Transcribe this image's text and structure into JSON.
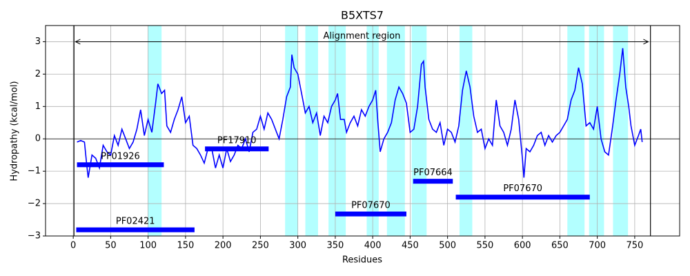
{
  "chart_data": {
    "type": "line",
    "title": "B5XTS7",
    "xlabel": "Residues",
    "ylabel": "Hydropathy (kcal/mol)",
    "xlim": [
      -37,
      810
    ],
    "ylim": [
      -3,
      3.5
    ],
    "xticks": [
      0,
      50,
      100,
      150,
      200,
      250,
      300,
      350,
      400,
      450,
      500,
      550,
      600,
      650,
      700,
      750
    ],
    "yticks": [
      {
        "value": -3,
        "label": "−3"
      },
      {
        "value": -2,
        "label": "−2"
      },
      {
        "value": -1,
        "label": "−1"
      },
      0,
      1,
      2,
      3
    ],
    "grid": true,
    "reference_line": 0,
    "bounds": [
      1,
      771
    ],
    "alignment_region": {
      "label": "Alignment region",
      "start": 3,
      "end": 768,
      "y": 3
    },
    "region_color": "#b3ffff",
    "regions": [
      [
        99.5,
        118
      ],
      [
        283,
        300
      ],
      [
        310,
        327
      ],
      [
        341,
        364
      ],
      [
        392,
        408
      ],
      [
        419,
        443
      ],
      [
        452,
        472
      ],
      [
        516,
        533
      ],
      [
        660,
        683
      ],
      [
        689,
        709
      ],
      [
        721,
        741
      ]
    ],
    "domain_color": "#0000ff",
    "domains": [
      {
        "name": "PF01926",
        "start": 5,
        "end": 121,
        "y": -0.8
      },
      {
        "name": "PF17910",
        "start": 176,
        "end": 261,
        "y": -0.31
      },
      {
        "name": "PF02421",
        "start": 4,
        "end": 162,
        "y": -2.81
      },
      {
        "name": "PF07670",
        "start": 350,
        "end": 445,
        "y": -2.32
      },
      {
        "name": "PF07664",
        "start": 454,
        "end": 507,
        "y": -1.31
      },
      {
        "name": "PF07670",
        "start": 511,
        "end": 690,
        "y": -1.8
      }
    ],
    "series": [
      {
        "color": "#0000ff",
        "x": [
          5,
          10,
          15,
          18,
          20,
          25,
          30,
          35,
          40,
          45,
          50,
          55,
          60,
          65,
          70,
          75,
          80,
          85,
          90,
          95,
          100,
          105,
          110,
          113,
          118,
          122,
          125,
          130,
          135,
          140,
          145,
          150,
          155,
          160,
          165,
          170,
          175,
          180,
          185,
          190,
          195,
          200,
          205,
          210,
          215,
          220,
          225,
          230,
          235,
          240,
          245,
          250,
          255,
          260,
          265,
          270,
          275,
          280,
          285,
          290,
          292,
          295,
          300,
          305,
          310,
          315,
          320,
          325,
          330,
          335,
          340,
          345,
          350,
          353,
          357,
          362,
          365,
          370,
          375,
          380,
          385,
          390,
          395,
          400,
          404,
          407,
          410,
          415,
          420,
          425,
          430,
          435,
          440,
          445,
          450,
          455,
          460,
          465,
          468,
          470,
          475,
          480,
          485,
          490,
          495,
          500,
          505,
          510,
          515,
          520,
          525,
          530,
          535,
          540,
          545,
          550,
          555,
          560,
          565,
          570,
          575,
          580,
          585,
          590,
          595,
          600,
          602,
          605,
          610,
          615,
          620,
          625,
          630,
          635,
          640,
          645,
          650,
          655,
          660,
          665,
          670,
          675,
          680,
          685,
          690,
          695,
          700,
          705,
          710,
          715,
          720,
          725,
          730,
          734,
          738,
          742,
          745,
          750,
          755,
          758,
          760
        ],
        "values": [
          -0.1,
          -0.05,
          -0.1,
          -0.8,
          -1.2,
          -0.5,
          -0.6,
          -0.9,
          -0.2,
          -0.4,
          -0.5,
          0.1,
          -0.2,
          0.3,
          0.0,
          -0.3,
          -0.1,
          0.3,
          0.9,
          0.1,
          0.6,
          0.2,
          1.1,
          1.7,
          1.4,
          1.5,
          0.4,
          0.2,
          0.6,
          0.9,
          1.3,
          0.5,
          0.7,
          -0.2,
          -0.3,
          -0.5,
          -0.75,
          -0.3,
          -0.3,
          -0.9,
          -0.5,
          -0.9,
          -0.3,
          -0.7,
          -0.5,
          -0.2,
          -0.3,
          0.0,
          -0.4,
          0.2,
          0.3,
          0.7,
          0.3,
          0.8,
          0.6,
          0.3,
          0.0,
          0.6,
          1.3,
          1.6,
          2.6,
          2.2,
          2.0,
          1.4,
          0.8,
          1.0,
          0.5,
          0.8,
          0.1,
          0.7,
          0.5,
          1.0,
          1.2,
          1.4,
          0.6,
          0.6,
          0.2,
          0.5,
          0.7,
          0.4,
          0.9,
          0.7,
          1.0,
          1.2,
          1.5,
          0.5,
          -0.4,
          0.0,
          0.2,
          0.5,
          1.2,
          1.6,
          1.4,
          1.1,
          0.2,
          0.3,
          1.0,
          2.3,
          2.4,
          1.6,
          0.6,
          0.3,
          0.2,
          0.5,
          -0.2,
          0.3,
          0.2,
          -0.1,
          0.4,
          1.5,
          2.1,
          1.6,
          0.7,
          0.2,
          0.3,
          -0.3,
          0.0,
          -0.2,
          1.2,
          0.4,
          0.2,
          -0.2,
          0.3,
          1.2,
          0.6,
          -0.6,
          -1.2,
          -0.3,
          -0.4,
          -0.2,
          0.1,
          0.2,
          -0.2,
          0.1,
          -0.1,
          0.1,
          0.2,
          0.4,
          0.6,
          1.2,
          1.5,
          2.2,
          1.7,
          0.4,
          0.5,
          0.3,
          1.0,
          0.0,
          -0.4,
          -0.5,
          0.3,
          1.2,
          2.0,
          2.8,
          1.6,
          1.0,
          0.4,
          -0.2,
          0.1,
          0.3,
          -0.1
        ]
      }
    ]
  }
}
